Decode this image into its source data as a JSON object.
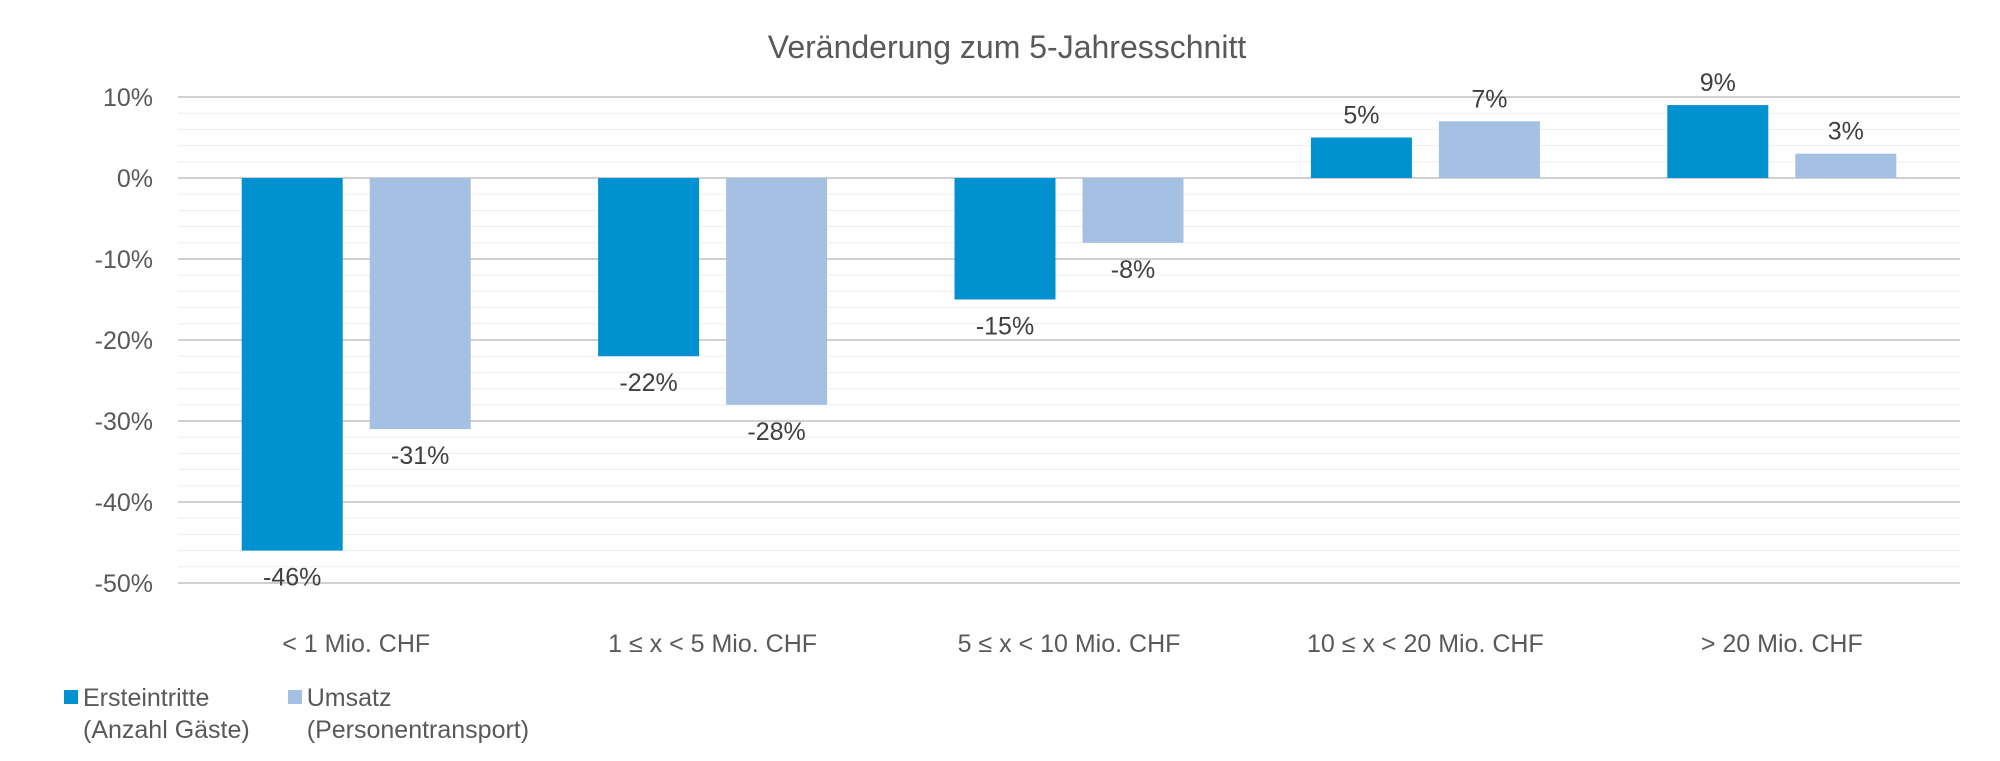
{
  "chart_data": {
    "type": "bar",
    "title": "Veränderung zum 5-Jahresschnitt",
    "categories": [
      "< 1 Mio. CHF",
      "1 ≤ x < 5 Mio. CHF",
      "5 ≤ x < 10 Mio. CHF",
      "10 ≤ x < 20 Mio. CHF",
      "> 20 Mio. CHF"
    ],
    "series": [
      {
        "name": "Ersteintritte (Anzahl Gäste)",
        "legend_lines": [
          "Ersteintritte",
          "(Anzahl Gäste)"
        ],
        "color": "#0092D0",
        "values": [
          -46,
          -22,
          -15,
          5,
          9
        ],
        "labels": [
          "-46%",
          "-22%",
          "-15%",
          "5%",
          "9%"
        ]
      },
      {
        "name": "Umsatz (Personentransport)",
        "legend_lines": [
          "Umsatz",
          "(Personentransport)"
        ],
        "color": "#A4C0E3",
        "values": [
          -31,
          -28,
          -8,
          7,
          3
        ],
        "labels": [
          "-31%",
          "-28%",
          "-8%",
          "7%",
          "3%"
        ]
      }
    ],
    "ylim": [
      -50,
      10
    ],
    "yticks": [
      10,
      0,
      -10,
      -20,
      -30,
      -40,
      -50
    ],
    "ytick_labels": [
      "10%",
      "0%",
      "-10%",
      "-20%",
      "-30%",
      "-40%",
      "-50%"
    ],
    "grid": true,
    "legend": "bottom-left"
  }
}
